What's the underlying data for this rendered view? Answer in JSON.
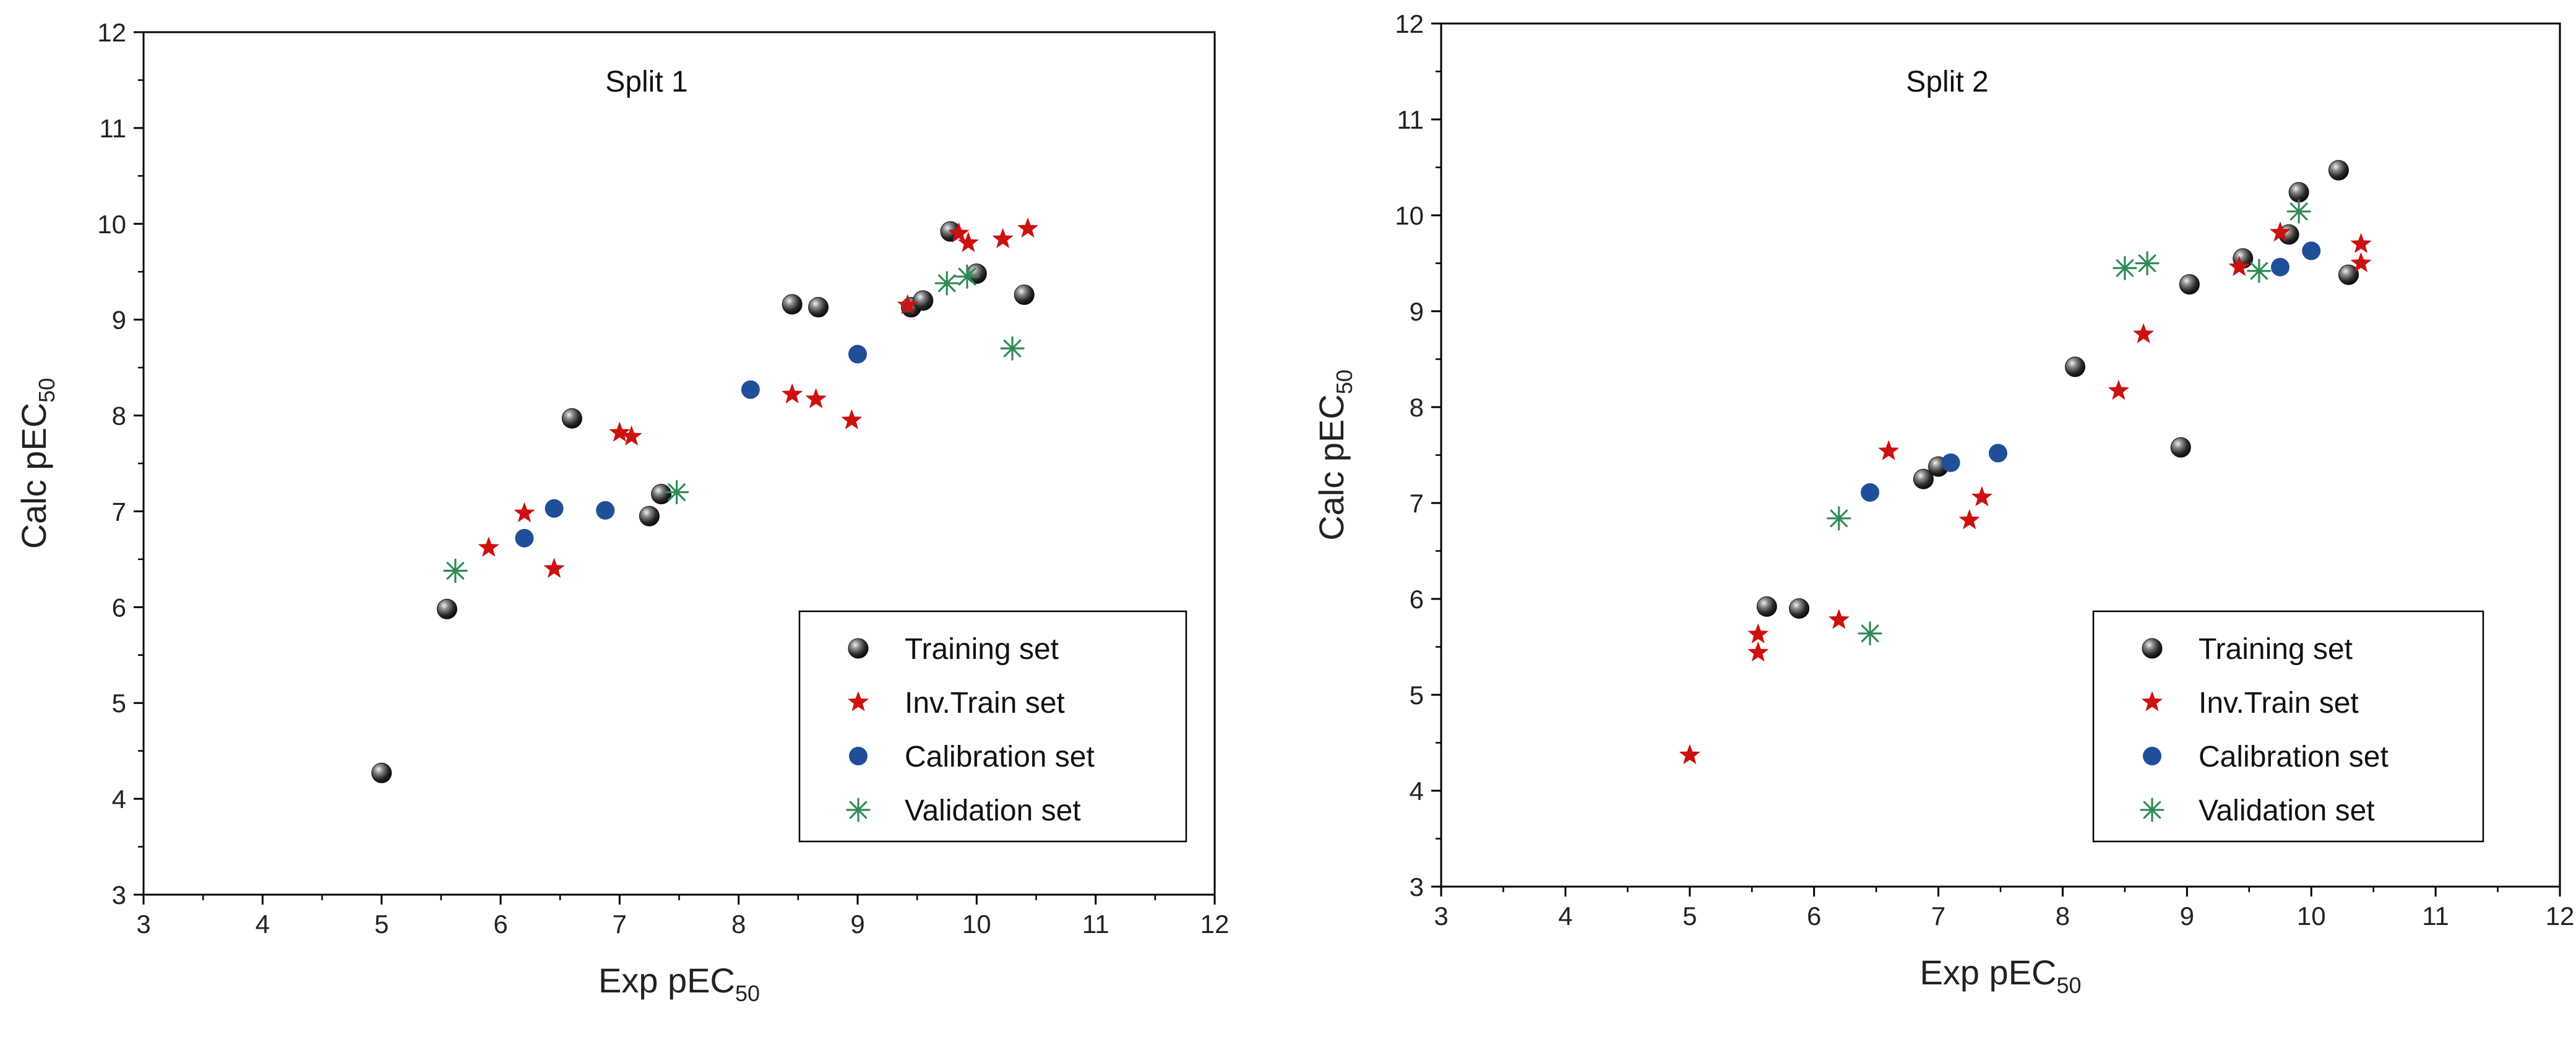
{
  "chart_data": [
    {
      "type": "scatter",
      "title": "Split 1",
      "xlabel": "Exp pEC",
      "xlabel_sub": "50",
      "ylabel": "Calc pEC",
      "ylabel_sub": "50",
      "xlim": [
        3,
        12
      ],
      "ylim": [
        3,
        12
      ],
      "xticks": [
        "3",
        "4",
        "5",
        "6",
        "7",
        "8",
        "9",
        "10",
        "11",
        "12"
      ],
      "yticks": [
        "3",
        "4",
        "5",
        "6",
        "7",
        "8",
        "9",
        "10",
        "11",
        "12"
      ],
      "grid": false,
      "legend_position": "bottom-right",
      "series": [
        {
          "name": "Training set",
          "marker": "sphere",
          "color": "#333333",
          "points": [
            [
              5.0,
              4.27
            ],
            [
              5.55,
              5.98
            ],
            [
              6.6,
              7.97
            ],
            [
              7.25,
              6.95
            ],
            [
              7.35,
              7.18
            ],
            [
              8.45,
              9.16
            ],
            [
              8.67,
              9.13
            ],
            [
              9.45,
              9.13
            ],
            [
              9.55,
              9.2
            ],
            [
              9.78,
              9.92
            ],
            [
              10.0,
              9.48
            ],
            [
              10.4,
              9.26
            ]
          ]
        },
        {
          "name": "Inv.Train set",
          "marker": "star",
          "color": "#cc1111",
          "points": [
            [
              5.9,
              6.62
            ],
            [
              6.2,
              6.98
            ],
            [
              6.45,
              6.4
            ],
            [
              7.0,
              7.82
            ],
            [
              7.1,
              7.78
            ],
            [
              8.45,
              8.22
            ],
            [
              8.65,
              8.17
            ],
            [
              8.95,
              7.95
            ],
            [
              9.42,
              9.15
            ],
            [
              9.85,
              9.9
            ],
            [
              9.93,
              9.8
            ],
            [
              10.22,
              9.84
            ],
            [
              10.43,
              9.95
            ]
          ]
        },
        {
          "name": "Calibration set",
          "marker": "circle",
          "color": "#1f4f99",
          "points": [
            [
              6.2,
              6.72
            ],
            [
              6.45,
              7.03
            ],
            [
              6.88,
              7.01
            ],
            [
              8.1,
              8.27
            ],
            [
              9.0,
              8.64
            ]
          ]
        },
        {
          "name": "Validation set",
          "marker": "asterisk",
          "color": "#2e8b57",
          "points": [
            [
              5.62,
              6.38
            ],
            [
              7.48,
              7.2
            ],
            [
              9.75,
              9.38
            ],
            [
              9.92,
              9.45
            ],
            [
              10.3,
              8.7
            ]
          ]
        }
      ]
    },
    {
      "type": "scatter",
      "title": "Split 2",
      "xlabel": "Exp pEC",
      "xlabel_sub": "50",
      "ylabel": "Calc pEC",
      "ylabel_sub": "50",
      "xlim": [
        3,
        12
      ],
      "ylim": [
        3,
        12
      ],
      "xticks": [
        "3",
        "4",
        "5",
        "6",
        "7",
        "8",
        "9",
        "10",
        "11",
        "12"
      ],
      "yticks": [
        "3",
        "4",
        "5",
        "6",
        "7",
        "8",
        "9",
        "10",
        "11",
        "12"
      ],
      "grid": false,
      "legend_position": "bottom-right",
      "series": [
        {
          "name": "Training set",
          "marker": "sphere",
          "color": "#333333",
          "points": [
            [
              5.62,
              5.92
            ],
            [
              5.88,
              5.9
            ],
            [
              6.88,
              7.25
            ],
            [
              7.0,
              7.38
            ],
            [
              8.1,
              8.42
            ],
            [
              8.95,
              7.58
            ],
            [
              9.02,
              9.28
            ],
            [
              9.45,
              9.55
            ],
            [
              9.82,
              9.8
            ],
            [
              9.9,
              10.24
            ],
            [
              10.22,
              10.47
            ],
            [
              10.3,
              9.38
            ]
          ]
        },
        {
          "name": "Inv.Train set",
          "marker": "star",
          "color": "#cc1111",
          "points": [
            [
              5.0,
              4.37
            ],
            [
              5.55,
              5.63
            ],
            [
              5.55,
              5.44
            ],
            [
              6.2,
              5.78
            ],
            [
              6.6,
              7.54
            ],
            [
              7.25,
              6.82
            ],
            [
              7.35,
              7.06
            ],
            [
              8.45,
              8.17
            ],
            [
              8.65,
              8.76
            ],
            [
              9.42,
              9.46
            ],
            [
              9.75,
              9.82
            ],
            [
              10.4,
              9.7
            ],
            [
              10.4,
              9.5
            ]
          ]
        },
        {
          "name": "Calibration set",
          "marker": "circle",
          "color": "#1f4f99",
          "points": [
            [
              6.45,
              7.11
            ],
            [
              7.1,
              7.42
            ],
            [
              7.48,
              7.52
            ],
            [
              9.75,
              9.46
            ],
            [
              10.0,
              9.63
            ]
          ]
        },
        {
          "name": "Validation set",
          "marker": "asterisk",
          "color": "#2e8b57",
          "points": [
            [
              6.2,
              6.84
            ],
            [
              6.45,
              5.64
            ],
            [
              8.5,
              9.45
            ],
            [
              8.68,
              9.5
            ],
            [
              9.58,
              9.42
            ],
            [
              9.9,
              10.04
            ]
          ]
        }
      ]
    }
  ]
}
